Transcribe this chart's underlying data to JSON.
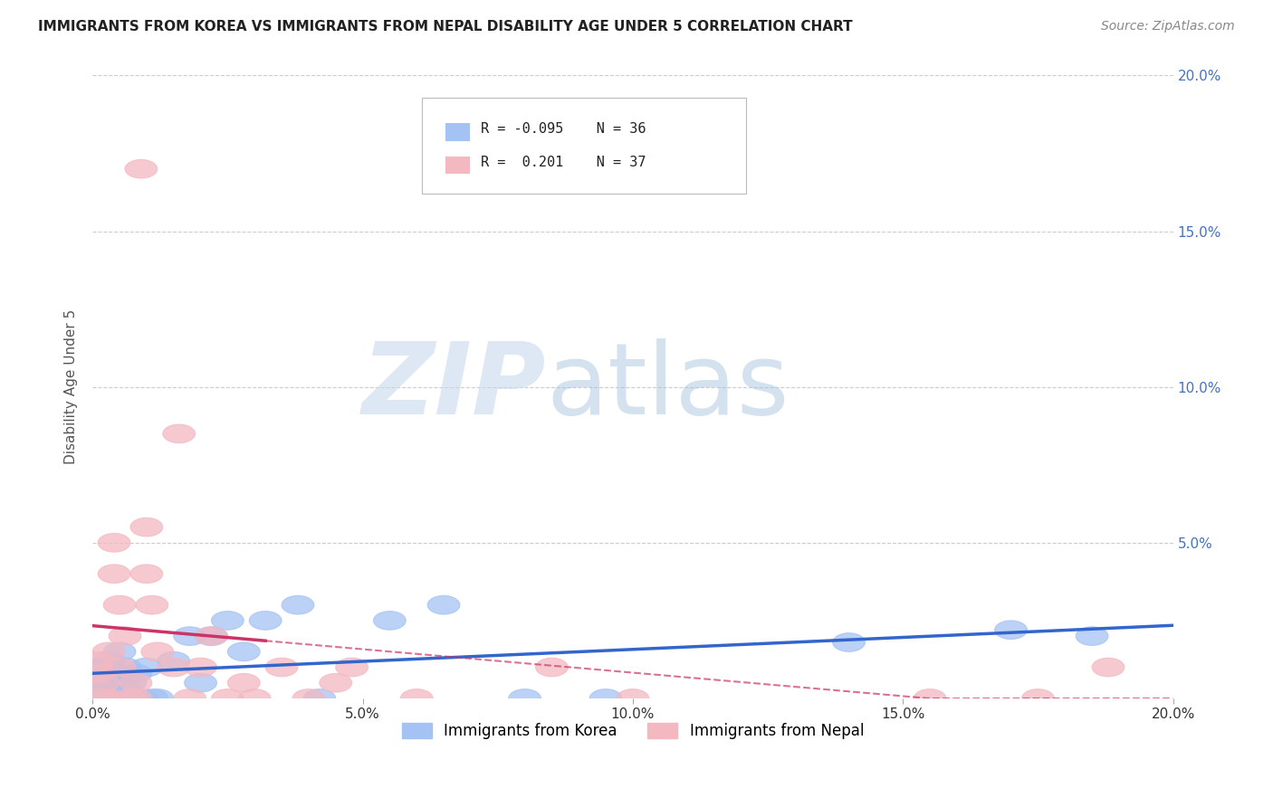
{
  "title": "IMMIGRANTS FROM KOREA VS IMMIGRANTS FROM NEPAL DISABILITY AGE UNDER 5 CORRELATION CHART",
  "source": "Source: ZipAtlas.com",
  "ylabel": "Disability Age Under 5",
  "xlim": [
    0.0,
    0.2
  ],
  "ylim": [
    0.0,
    0.2
  ],
  "xtick_labels": [
    "0.0%",
    "5.0%",
    "10.0%",
    "15.0%",
    "20.0%"
  ],
  "xtick_vals": [
    0.0,
    0.05,
    0.1,
    0.15,
    0.2
  ],
  "ytick_labels": [
    "20.0%",
    "15.0%",
    "10.0%",
    "5.0%"
  ],
  "ytick_vals": [
    0.2,
    0.15,
    0.1,
    0.05
  ],
  "legend_korea": "Immigrants from Korea",
  "legend_nepal": "Immigrants from Nepal",
  "R_korea": "-0.095",
  "N_korea": "36",
  "R_nepal": "0.201",
  "N_nepal": "37",
  "color_korea": "#a4c2f4",
  "color_nepal": "#f4b8c1",
  "trend_korea_color": "#3366cc",
  "trend_nepal_color": "#cc3366",
  "korea_x": [
    0.001,
    0.001,
    0.002,
    0.002,
    0.003,
    0.003,
    0.003,
    0.004,
    0.004,
    0.005,
    0.005,
    0.005,
    0.006,
    0.006,
    0.007,
    0.008,
    0.009,
    0.01,
    0.011,
    0.012,
    0.015,
    0.018,
    0.02,
    0.022,
    0.025,
    0.028,
    0.032,
    0.038,
    0.042,
    0.055,
    0.065,
    0.08,
    0.095,
    0.14,
    0.17,
    0.185
  ],
  "korea_y": [
    0.005,
    0.008,
    0.003,
    0.01,
    0.0,
    0.005,
    0.012,
    0.0,
    0.008,
    0.0,
    0.008,
    0.015,
    0.003,
    0.01,
    0.005,
    0.008,
    0.0,
    0.01,
    0.0,
    0.0,
    0.012,
    0.02,
    0.005,
    0.02,
    0.025,
    0.015,
    0.025,
    0.03,
    0.0,
    0.025,
    0.03,
    0.0,
    0.0,
    0.018,
    0.022,
    0.02
  ],
  "nepal_x": [
    0.001,
    0.001,
    0.002,
    0.002,
    0.003,
    0.003,
    0.004,
    0.004,
    0.005,
    0.005,
    0.006,
    0.007,
    0.008,
    0.008,
    0.009,
    0.01,
    0.01,
    0.011,
    0.012,
    0.015,
    0.016,
    0.018,
    0.02,
    0.022,
    0.025,
    0.028,
    0.03,
    0.035,
    0.04,
    0.045,
    0.048,
    0.06,
    0.085,
    0.1,
    0.155,
    0.175,
    0.188
  ],
  "nepal_y": [
    0.008,
    0.012,
    0.005,
    0.0,
    0.015,
    0.0,
    0.04,
    0.05,
    0.03,
    0.01,
    0.02,
    0.0,
    0.005,
    0.0,
    0.17,
    0.055,
    0.04,
    0.03,
    0.015,
    0.01,
    0.085,
    0.0,
    0.01,
    0.02,
    0.0,
    0.005,
    0.0,
    0.01,
    0.0,
    0.005,
    0.01,
    0.0,
    0.01,
    0.0,
    0.0,
    0.0,
    0.01
  ]
}
